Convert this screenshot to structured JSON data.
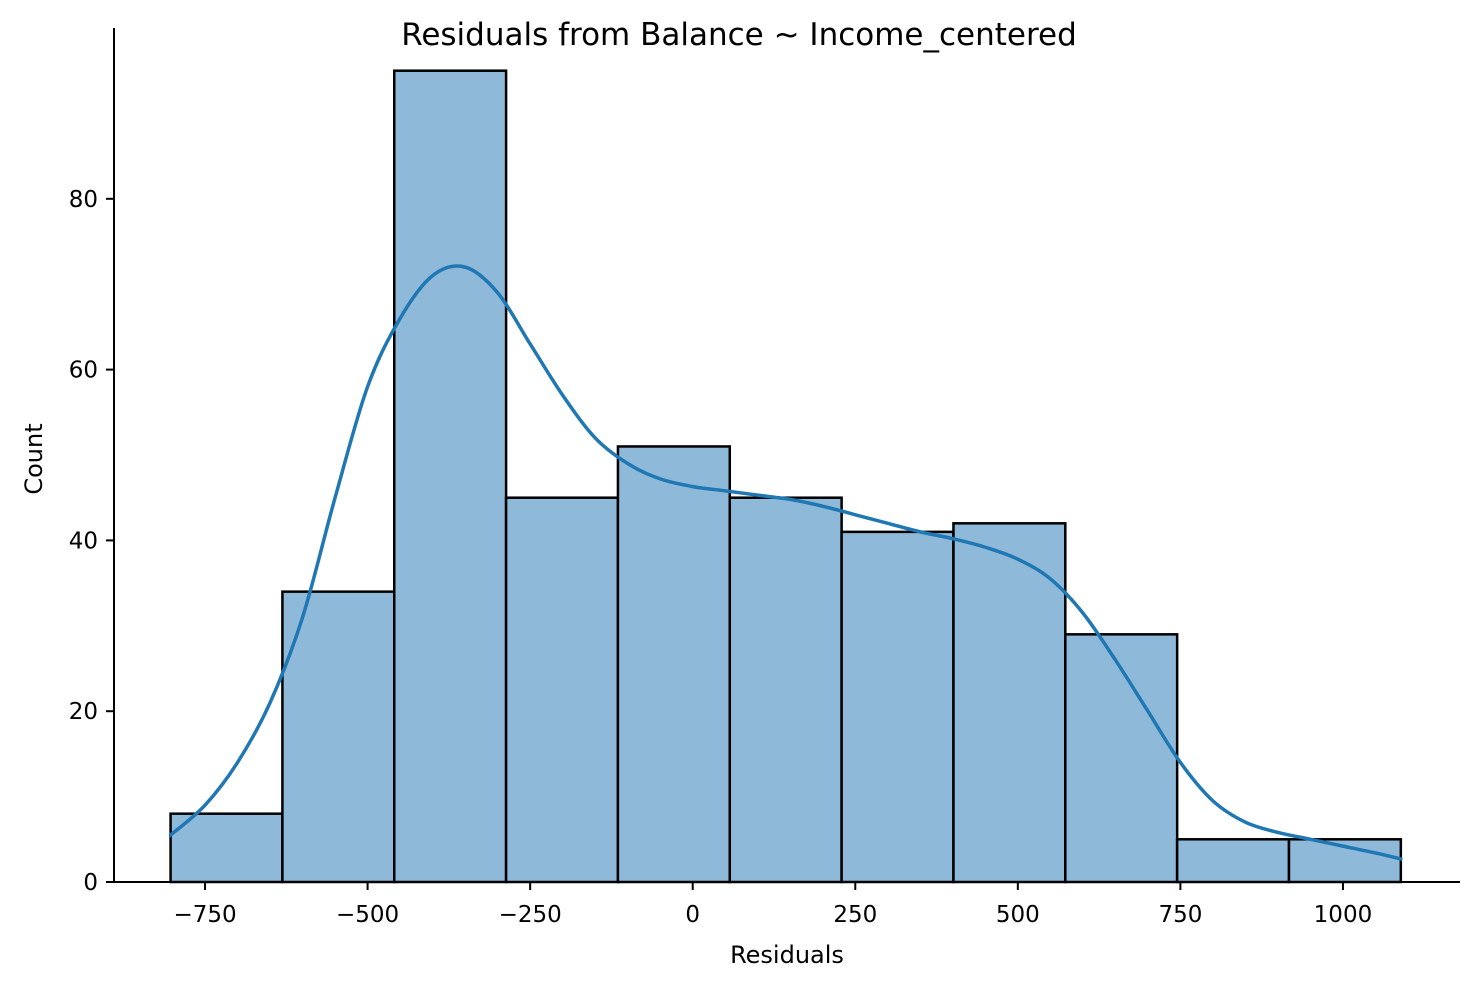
{
  "chart_data": {
    "type": "bar",
    "title": "Residuals from Balance ~ Income_centered",
    "xlabel": "Residuals",
    "ylabel": "Count",
    "xlim": [
      -890,
      1180
    ],
    "ylim": [
      0,
      100
    ],
    "xticks": [
      -750,
      -500,
      -250,
      0,
      250,
      500,
      750,
      1000
    ],
    "xtick_labels": [
      "−750",
      "−500",
      "−250",
      "0",
      "250",
      "500",
      "750",
      "1000"
    ],
    "yticks": [
      0,
      20,
      40,
      60,
      80
    ],
    "ytick_labels": [
      "0",
      "20",
      "40",
      "60",
      "80"
    ],
    "grid": false,
    "bins": [
      {
        "x0": -803,
        "x1": -631,
        "count": 8
      },
      {
        "x0": -631,
        "x1": -459,
        "count": 34
      },
      {
        "x0": -459,
        "x1": -287,
        "count": 95
      },
      {
        "x0": -287,
        "x1": -115,
        "count": 45
      },
      {
        "x0": -115,
        "x1": 57,
        "count": 51
      },
      {
        "x0": 57,
        "x1": 229,
        "count": 45
      },
      {
        "x0": 229,
        "x1": 401,
        "count": 41
      },
      {
        "x0": 401,
        "x1": 573,
        "count": 42
      },
      {
        "x0": 573,
        "x1": 745,
        "count": 29
      },
      {
        "x0": 745,
        "x1": 917,
        "count": 5
      },
      {
        "x0": 917,
        "x1": 1089,
        "count": 5
      }
    ],
    "kde": [
      [
        -803,
        5.5
      ],
      [
        -750,
        9
      ],
      [
        -700,
        14
      ],
      [
        -650,
        21
      ],
      [
        -600,
        31
      ],
      [
        -550,
        45
      ],
      [
        -500,
        58
      ],
      [
        -450,
        66
      ],
      [
        -400,
        71
      ],
      [
        -350,
        72
      ],
      [
        -300,
        69
      ],
      [
        -250,
        63
      ],
      [
        -200,
        57
      ],
      [
        -150,
        52
      ],
      [
        -100,
        49
      ],
      [
        -50,
        47.2
      ],
      [
        0,
        46.3
      ],
      [
        50,
        45.8
      ],
      [
        100,
        45.3
      ],
      [
        150,
        44.8
      ],
      [
        200,
        44
      ],
      [
        250,
        43
      ],
      [
        300,
        42
      ],
      [
        350,
        41
      ],
      [
        400,
        40.2
      ],
      [
        450,
        39.2
      ],
      [
        500,
        37.8
      ],
      [
        550,
        35.5
      ],
      [
        600,
        31.5
      ],
      [
        650,
        26
      ],
      [
        700,
        20
      ],
      [
        750,
        14
      ],
      [
        800,
        9.5
      ],
      [
        850,
        7
      ],
      [
        900,
        5.8
      ],
      [
        950,
        5
      ],
      [
        1000,
        4.2
      ],
      [
        1050,
        3.4
      ],
      [
        1089,
        2.7
      ]
    ],
    "colors": {
      "bar_fill": "#8eb9d9",
      "bar_edge": "#000000",
      "kde": "#1f77b4"
    }
  }
}
